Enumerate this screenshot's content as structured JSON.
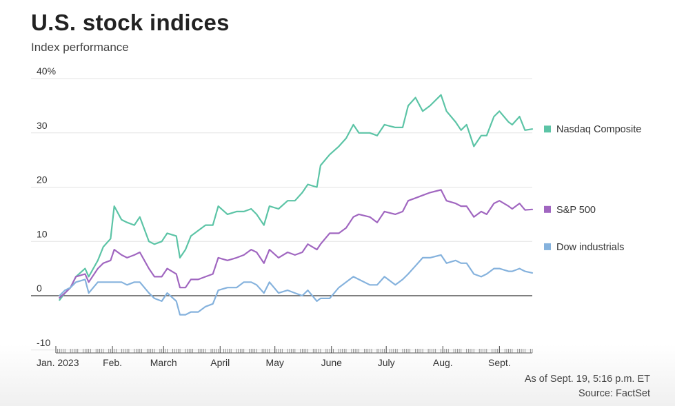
{
  "header": {
    "title": "U.S. stock indices",
    "subtitle": "Index performance"
  },
  "notes": {
    "as_of": "As of Sept. 19, 5:16 p.m. ET",
    "source": "Source: FactSet"
  },
  "chart_data": {
    "type": "line",
    "title": "U.S. stock indices",
    "subtitle": "Index performance",
    "xlabel": "",
    "ylabel": "",
    "ylim": [
      -10,
      40
    ],
    "xlim": [
      "2023-01-01",
      "2023-09-19"
    ],
    "yticks": [
      {
        "value": 40,
        "label": "40%"
      },
      {
        "value": 30,
        "label": "30"
      },
      {
        "value": 20,
        "label": "20"
      },
      {
        "value": 10,
        "label": "10"
      },
      {
        "value": 0,
        "label": "0"
      },
      {
        "value": -10,
        "label": "-10"
      }
    ],
    "xticks": [
      {
        "date": "2023-01-01",
        "label": "Jan. 2023"
      },
      {
        "date": "2023-02-01",
        "label": "Feb."
      },
      {
        "date": "2023-03-01",
        "label": "March"
      },
      {
        "date": "2023-04-01",
        "label": "April"
      },
      {
        "date": "2023-05-01",
        "label": "May"
      },
      {
        "date": "2023-06-01",
        "label": "June"
      },
      {
        "date": "2023-07-01",
        "label": "July"
      },
      {
        "date": "2023-08-01",
        "label": "Aug."
      },
      {
        "date": "2023-09-01",
        "label": "Sept."
      }
    ],
    "grid": true,
    "legend_position": "right",
    "series": [
      {
        "name": "Nasdaq Composite",
        "color": "#5cc4a6",
        "points": [
          [
            "2023-01-03",
            -0.8
          ],
          [
            "2023-01-06",
            0.5
          ],
          [
            "2023-01-09",
            1.5
          ],
          [
            "2023-01-12",
            3.5
          ],
          [
            "2023-01-17",
            5.0
          ],
          [
            "2023-01-19",
            3.5
          ],
          [
            "2023-01-24",
            6.5
          ],
          [
            "2023-01-27",
            9.0
          ],
          [
            "2023-01-31",
            10.5
          ],
          [
            "2023-02-02",
            16.5
          ],
          [
            "2023-02-06",
            14.0
          ],
          [
            "2023-02-09",
            13.5
          ],
          [
            "2023-02-13",
            13.0
          ],
          [
            "2023-02-16",
            14.5
          ],
          [
            "2023-02-21",
            10.0
          ],
          [
            "2023-02-24",
            9.5
          ],
          [
            "2023-02-28",
            10.0
          ],
          [
            "2023-03-03",
            11.5
          ],
          [
            "2023-03-08",
            11.0
          ],
          [
            "2023-03-10",
            7.0
          ],
          [
            "2023-03-13",
            8.5
          ],
          [
            "2023-03-16",
            11.0
          ],
          [
            "2023-03-20",
            12.0
          ],
          [
            "2023-03-24",
            13.0
          ],
          [
            "2023-03-28",
            13.0
          ],
          [
            "2023-03-31",
            16.5
          ],
          [
            "2023-04-05",
            15.0
          ],
          [
            "2023-04-10",
            15.5
          ],
          [
            "2023-04-14",
            15.5
          ],
          [
            "2023-04-18",
            16.0
          ],
          [
            "2023-04-21",
            15.0
          ],
          [
            "2023-04-25",
            13.0
          ],
          [
            "2023-04-28",
            16.5
          ],
          [
            "2023-05-03",
            16.0
          ],
          [
            "2023-05-08",
            17.5
          ],
          [
            "2023-05-12",
            17.5
          ],
          [
            "2023-05-16",
            19.0
          ],
          [
            "2023-05-19",
            20.5
          ],
          [
            "2023-05-24",
            20.0
          ],
          [
            "2023-05-26",
            24.0
          ],
          [
            "2023-05-31",
            26.0
          ],
          [
            "2023-06-05",
            27.5
          ],
          [
            "2023-06-09",
            29.0
          ],
          [
            "2023-06-13",
            31.5
          ],
          [
            "2023-06-16",
            30.0
          ],
          [
            "2023-06-22",
            30.0
          ],
          [
            "2023-06-26",
            29.5
          ],
          [
            "2023-06-30",
            31.5
          ],
          [
            "2023-07-06",
            31.0
          ],
          [
            "2023-07-10",
            31.0
          ],
          [
            "2023-07-13",
            35.0
          ],
          [
            "2023-07-17",
            36.5
          ],
          [
            "2023-07-21",
            34.0
          ],
          [
            "2023-07-25",
            35.0
          ],
          [
            "2023-07-31",
            37.0
          ],
          [
            "2023-08-03",
            34.0
          ],
          [
            "2023-08-08",
            32.0
          ],
          [
            "2023-08-11",
            30.5
          ],
          [
            "2023-08-14",
            31.5
          ],
          [
            "2023-08-18",
            27.5
          ],
          [
            "2023-08-22",
            29.5
          ],
          [
            "2023-08-25",
            29.5
          ],
          [
            "2023-08-29",
            33.0
          ],
          [
            "2023-09-01",
            34.0
          ],
          [
            "2023-09-06",
            32.0
          ],
          [
            "2023-09-08",
            31.5
          ],
          [
            "2023-09-12",
            33.0
          ],
          [
            "2023-09-15",
            30.5
          ],
          [
            "2023-09-19",
            30.7
          ]
        ]
      },
      {
        "name": "S&P 500",
        "color": "#a066c0",
        "points": [
          [
            "2023-01-03",
            -0.4
          ],
          [
            "2023-01-06",
            0.5
          ],
          [
            "2023-01-09",
            1.5
          ],
          [
            "2023-01-12",
            3.5
          ],
          [
            "2023-01-17",
            4.0
          ],
          [
            "2023-01-19",
            2.5
          ],
          [
            "2023-01-24",
            5.0
          ],
          [
            "2023-01-27",
            6.0
          ],
          [
            "2023-01-31",
            6.5
          ],
          [
            "2023-02-02",
            8.5
          ],
          [
            "2023-02-06",
            7.5
          ],
          [
            "2023-02-09",
            7.0
          ],
          [
            "2023-02-13",
            7.5
          ],
          [
            "2023-02-16",
            8.0
          ],
          [
            "2023-02-21",
            5.0
          ],
          [
            "2023-02-24",
            3.5
          ],
          [
            "2023-02-28",
            3.5
          ],
          [
            "2023-03-03",
            5.0
          ],
          [
            "2023-03-08",
            4.0
          ],
          [
            "2023-03-10",
            1.5
          ],
          [
            "2023-03-13",
            1.5
          ],
          [
            "2023-03-16",
            3.0
          ],
          [
            "2023-03-20",
            3.0
          ],
          [
            "2023-03-24",
            3.5
          ],
          [
            "2023-03-28",
            4.0
          ],
          [
            "2023-03-31",
            7.0
          ],
          [
            "2023-04-05",
            6.5
          ],
          [
            "2023-04-10",
            7.0
          ],
          [
            "2023-04-14",
            7.5
          ],
          [
            "2023-04-18",
            8.5
          ],
          [
            "2023-04-21",
            8.0
          ],
          [
            "2023-04-25",
            6.0
          ],
          [
            "2023-04-28",
            8.5
          ],
          [
            "2023-05-03",
            7.0
          ],
          [
            "2023-05-08",
            8.0
          ],
          [
            "2023-05-12",
            7.5
          ],
          [
            "2023-05-16",
            8.0
          ],
          [
            "2023-05-19",
            9.5
          ],
          [
            "2023-05-24",
            8.5
          ],
          [
            "2023-05-26",
            9.5
          ],
          [
            "2023-05-31",
            11.5
          ],
          [
            "2023-06-05",
            11.5
          ],
          [
            "2023-06-09",
            12.5
          ],
          [
            "2023-06-13",
            14.5
          ],
          [
            "2023-06-16",
            15.0
          ],
          [
            "2023-06-22",
            14.5
          ],
          [
            "2023-06-26",
            13.5
          ],
          [
            "2023-06-30",
            15.5
          ],
          [
            "2023-07-06",
            15.0
          ],
          [
            "2023-07-10",
            15.5
          ],
          [
            "2023-07-13",
            17.5
          ],
          [
            "2023-07-17",
            18.0
          ],
          [
            "2023-07-21",
            18.5
          ],
          [
            "2023-07-25",
            19.0
          ],
          [
            "2023-07-31",
            19.5
          ],
          [
            "2023-08-03",
            17.5
          ],
          [
            "2023-08-08",
            17.0
          ],
          [
            "2023-08-11",
            16.5
          ],
          [
            "2023-08-14",
            16.5
          ],
          [
            "2023-08-18",
            14.5
          ],
          [
            "2023-08-22",
            15.5
          ],
          [
            "2023-08-25",
            15.0
          ],
          [
            "2023-08-29",
            17.0
          ],
          [
            "2023-09-01",
            17.5
          ],
          [
            "2023-09-06",
            16.5
          ],
          [
            "2023-09-08",
            16.0
          ],
          [
            "2023-09-12",
            17.0
          ],
          [
            "2023-09-15",
            15.8
          ],
          [
            "2023-09-19",
            15.9
          ]
        ]
      },
      {
        "name": "Dow industrials",
        "color": "#85b2dd",
        "points": [
          [
            "2023-01-03",
            0.0
          ],
          [
            "2023-01-06",
            1.0
          ],
          [
            "2023-01-09",
            1.5
          ],
          [
            "2023-01-12",
            2.5
          ],
          [
            "2023-01-17",
            3.0
          ],
          [
            "2023-01-19",
            0.5
          ],
          [
            "2023-01-24",
            2.5
          ],
          [
            "2023-01-27",
            2.5
          ],
          [
            "2023-01-31",
            2.5
          ],
          [
            "2023-02-02",
            2.5
          ],
          [
            "2023-02-06",
            2.5
          ],
          [
            "2023-02-09",
            2.0
          ],
          [
            "2023-02-13",
            2.5
          ],
          [
            "2023-02-16",
            2.5
          ],
          [
            "2023-02-21",
            0.5
          ],
          [
            "2023-02-24",
            -0.5
          ],
          [
            "2023-02-28",
            -1.0
          ],
          [
            "2023-03-03",
            0.5
          ],
          [
            "2023-03-08",
            -1.0
          ],
          [
            "2023-03-10",
            -3.5
          ],
          [
            "2023-03-13",
            -3.5
          ],
          [
            "2023-03-16",
            -3.0
          ],
          [
            "2023-03-20",
            -3.0
          ],
          [
            "2023-03-24",
            -2.0
          ],
          [
            "2023-03-28",
            -1.5
          ],
          [
            "2023-03-31",
            1.0
          ],
          [
            "2023-04-05",
            1.5
          ],
          [
            "2023-04-10",
            1.5
          ],
          [
            "2023-04-14",
            2.5
          ],
          [
            "2023-04-18",
            2.5
          ],
          [
            "2023-04-21",
            2.0
          ],
          [
            "2023-04-25",
            0.5
          ],
          [
            "2023-04-28",
            2.5
          ],
          [
            "2023-05-03",
            0.5
          ],
          [
            "2023-05-08",
            1.0
          ],
          [
            "2023-05-12",
            0.5
          ],
          [
            "2023-05-16",
            0.0
          ],
          [
            "2023-05-19",
            1.0
          ],
          [
            "2023-05-24",
            -1.0
          ],
          [
            "2023-05-26",
            -0.5
          ],
          [
            "2023-05-31",
            -0.5
          ],
          [
            "2023-06-05",
            1.5
          ],
          [
            "2023-06-09",
            2.5
          ],
          [
            "2023-06-13",
            3.5
          ],
          [
            "2023-06-16",
            3.0
          ],
          [
            "2023-06-22",
            2.0
          ],
          [
            "2023-06-26",
            2.0
          ],
          [
            "2023-06-30",
            3.5
          ],
          [
            "2023-07-06",
            2.0
          ],
          [
            "2023-07-10",
            3.0
          ],
          [
            "2023-07-13",
            4.0
          ],
          [
            "2023-07-17",
            5.5
          ],
          [
            "2023-07-21",
            7.0
          ],
          [
            "2023-07-25",
            7.0
          ],
          [
            "2023-07-31",
            7.5
          ],
          [
            "2023-08-03",
            6.0
          ],
          [
            "2023-08-08",
            6.5
          ],
          [
            "2023-08-11",
            6.0
          ],
          [
            "2023-08-14",
            6.0
          ],
          [
            "2023-08-18",
            4.0
          ],
          [
            "2023-08-22",
            3.5
          ],
          [
            "2023-08-25",
            4.0
          ],
          [
            "2023-08-29",
            5.0
          ],
          [
            "2023-09-01",
            5.0
          ],
          [
            "2023-09-06",
            4.5
          ],
          [
            "2023-09-08",
            4.5
          ],
          [
            "2023-09-12",
            5.0
          ],
          [
            "2023-09-15",
            4.5
          ],
          [
            "2023-09-19",
            4.2
          ]
        ]
      }
    ]
  }
}
